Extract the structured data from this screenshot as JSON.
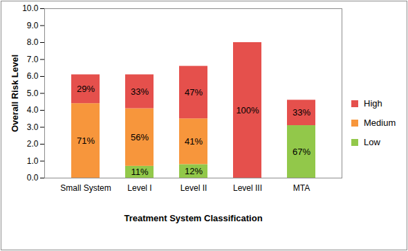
{
  "chart_data": {
    "type": "bar",
    "stacked": true,
    "data_labels": true,
    "grid": false,
    "legend": "right",
    "x_label": "Treatment System Classification",
    "y_label": "Overall Risk Level",
    "categories": [
      "Small System",
      "Level I",
      "Level II",
      "Level III",
      "MTA"
    ],
    "ylim": [
      0,
      10
    ],
    "yticks": [
      {
        "value": 0,
        "label": "0.0"
      },
      {
        "value": 1,
        "label": "1.0"
      },
      {
        "value": 2,
        "label": "2.0"
      },
      {
        "value": 3,
        "label": "3.0"
      },
      {
        "value": 4,
        "label": "4.0"
      },
      {
        "value": 5,
        "label": "5.0"
      },
      {
        "value": 6,
        "label": "6.0"
      },
      {
        "value": 7,
        "label": "7.0"
      },
      {
        "value": 8,
        "label": "8.0"
      },
      {
        "value": 9,
        "label": "9.0"
      },
      {
        "value": 10,
        "label": "10.0"
      }
    ],
    "series": [
      {
        "name": "Low",
        "color": "#92c84a",
        "values": [
          null,
          0.7,
          0.8,
          null,
          3.1
        ],
        "share_labels": [
          null,
          "11%",
          "12%",
          null,
          "67%"
        ]
      },
      {
        "name": "Medium",
        "color": "#f7963c",
        "values": [
          4.4,
          3.4,
          2.7,
          null,
          null
        ],
        "share_labels": [
          "71%",
          "56%",
          "41%",
          null,
          null
        ]
      },
      {
        "name": "High",
        "color": "#e5504c",
        "values": [
          1.7,
          2.0,
          3.1,
          8.0,
          1.5
        ],
        "share_labels": [
          "29%",
          "33%",
          "47%",
          "100%",
          "33%"
        ]
      }
    ]
  }
}
